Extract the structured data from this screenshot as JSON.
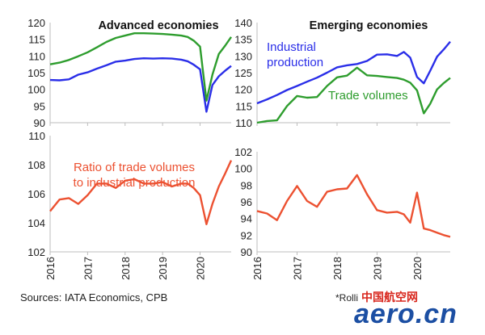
{
  "footer": {
    "source": "Sources: IATA Economics, CPB",
    "note": "*Rolli",
    "watermark": "aero.cn",
    "watermark_cn": "中国航空网"
  },
  "chart_data": [
    {
      "id": "adv-top",
      "type": "line",
      "title": "Advanced economies",
      "ylim": [
        90,
        120
      ],
      "yticks": [
        90,
        95,
        100,
        105,
        110,
        115,
        120
      ],
      "x_range": [
        2016.0,
        2020.83
      ],
      "x_ticks": [
        "2016",
        "2017",
        "2018",
        "2019",
        "2020"
      ],
      "series": [
        {
          "name": "",
          "color": "#2a2ee8",
          "x": [
            2016.0,
            2016.25,
            2016.5,
            2016.75,
            2017.0,
            2017.25,
            2017.5,
            2017.75,
            2018.0,
            2018.25,
            2018.5,
            2018.75,
            2019.0,
            2019.25,
            2019.5,
            2019.67,
            2019.83,
            2020.0,
            2020.17,
            2020.33,
            2020.5,
            2020.67,
            2020.83
          ],
          "y": [
            102.8,
            102.7,
            103.0,
            104.4,
            105.1,
            106.2,
            107.2,
            108.3,
            108.6,
            109.1,
            109.3,
            109.2,
            109.3,
            109.2,
            108.9,
            108.4,
            107.4,
            106.0,
            93.3,
            101.3,
            103.9,
            105.6,
            107.0
          ]
        },
        {
          "name": "",
          "color": "#2e9d2e",
          "x": [
            2016.0,
            2016.25,
            2016.5,
            2016.75,
            2017.0,
            2017.25,
            2017.5,
            2017.75,
            2018.0,
            2018.25,
            2018.5,
            2018.75,
            2019.0,
            2019.25,
            2019.5,
            2019.67,
            2019.83,
            2020.0,
            2020.17,
            2020.33,
            2020.5,
            2020.67,
            2020.83
          ],
          "y": [
            107.5,
            108.0,
            108.8,
            109.9,
            111.1,
            112.6,
            114.2,
            115.4,
            116.1,
            116.8,
            116.8,
            116.7,
            116.6,
            116.4,
            116.1,
            115.7,
            114.6,
            112.8,
            96.6,
            104.4,
            110.6,
            113.1,
            115.7
          ]
        }
      ]
    },
    {
      "id": "emg-top",
      "type": "line",
      "title": "Emerging economies",
      "ylim": [
        110,
        140
      ],
      "yticks": [
        110,
        115,
        120,
        125,
        130,
        135,
        140
      ],
      "x_range": [
        2016.0,
        2020.83
      ],
      "x_ticks": [
        "2016",
        "2017",
        "2018",
        "2019",
        "2020"
      ],
      "annotations": [
        "Industrial",
        "production",
        "Trade volumes"
      ],
      "series": [
        {
          "name": "Industrial production",
          "color": "#2a2ee8",
          "x": [
            2016.0,
            2016.25,
            2016.5,
            2016.75,
            2017.0,
            2017.25,
            2017.5,
            2017.75,
            2018.0,
            2018.25,
            2018.5,
            2018.75,
            2019.0,
            2019.25,
            2019.5,
            2019.67,
            2019.83,
            2020.0,
            2020.17,
            2020.33,
            2020.5,
            2020.67,
            2020.83
          ],
          "y": [
            115.8,
            117.0,
            118.3,
            119.8,
            121.0,
            122.3,
            123.5,
            125.0,
            126.6,
            127.2,
            127.6,
            128.5,
            130.4,
            130.5,
            130.0,
            131.2,
            129.5,
            123.7,
            121.8,
            125.6,
            129.8,
            132.0,
            134.3
          ]
        },
        {
          "name": "Trade volumes",
          "color": "#2e9d2e",
          "x": [
            2016.0,
            2016.25,
            2016.5,
            2016.75,
            2017.0,
            2017.25,
            2017.5,
            2017.75,
            2018.0,
            2018.25,
            2018.5,
            2018.75,
            2019.0,
            2019.25,
            2019.5,
            2019.67,
            2019.83,
            2020.0,
            2020.17,
            2020.33,
            2020.5,
            2020.67,
            2020.83
          ],
          "y": [
            110.0,
            110.5,
            110.7,
            115.0,
            118.0,
            117.5,
            117.7,
            121.0,
            123.6,
            124.1,
            126.5,
            124.2,
            124.0,
            123.7,
            123.4,
            122.9,
            122.0,
            119.7,
            112.8,
            115.7,
            120.0,
            121.9,
            123.4
          ]
        }
      ]
    },
    {
      "id": "adv-bottom",
      "type": "line",
      "title": "",
      "ylim": [
        102,
        110
      ],
      "yticks": [
        102,
        104,
        106,
        108,
        110
      ],
      "x_range": [
        2016.0,
        2020.83
      ],
      "x_ticks": [
        "2016",
        "2017",
        "2018",
        "2019",
        "2020"
      ],
      "annotations": [
        "Ratio of trade volumes",
        "to industrial production"
      ],
      "series": [
        {
          "name": "Ratio of trade volumes to industrial production",
          "color": "#ec5131",
          "x": [
            2016.0,
            2016.25,
            2016.5,
            2016.75,
            2017.0,
            2017.25,
            2017.5,
            2017.75,
            2018.0,
            2018.25,
            2018.5,
            2018.75,
            2019.0,
            2019.25,
            2019.5,
            2019.67,
            2019.83,
            2020.0,
            2020.17,
            2020.33,
            2020.5,
            2020.67,
            2020.83
          ],
          "y": [
            104.8,
            105.6,
            105.7,
            105.3,
            105.9,
            106.7,
            106.7,
            106.4,
            106.9,
            107.0,
            106.7,
            106.7,
            106.8,
            106.5,
            106.7,
            106.7,
            106.4,
            105.9,
            103.9,
            105.3,
            106.5,
            107.4,
            108.3
          ]
        }
      ]
    },
    {
      "id": "emg-bottom",
      "type": "line",
      "title": "",
      "ylim": [
        90,
        102
      ],
      "yticks": [
        90,
        92,
        94,
        96,
        98,
        100,
        102
      ],
      "x_range": [
        2016.0,
        2020.83
      ],
      "x_ticks": [
        "2016",
        "2017",
        "2018",
        "2019",
        "2020"
      ],
      "series": [
        {
          "name": "",
          "color": "#ec5131",
          "x": [
            2016.0,
            2016.25,
            2016.5,
            2016.75,
            2017.0,
            2017.25,
            2017.5,
            2017.75,
            2018.0,
            2018.25,
            2018.5,
            2018.75,
            2019.0,
            2019.25,
            2019.5,
            2019.67,
            2019.83,
            2020.0,
            2020.17,
            2020.33,
            2020.5,
            2020.67,
            2020.83
          ],
          "y": [
            94.9,
            94.6,
            93.8,
            96.1,
            97.9,
            96.1,
            95.4,
            97.2,
            97.5,
            97.6,
            99.2,
            96.9,
            95.0,
            94.7,
            94.8,
            94.5,
            93.5,
            97.1,
            92.8,
            92.6,
            92.3,
            92.0,
            91.8
          ]
        }
      ]
    }
  ]
}
